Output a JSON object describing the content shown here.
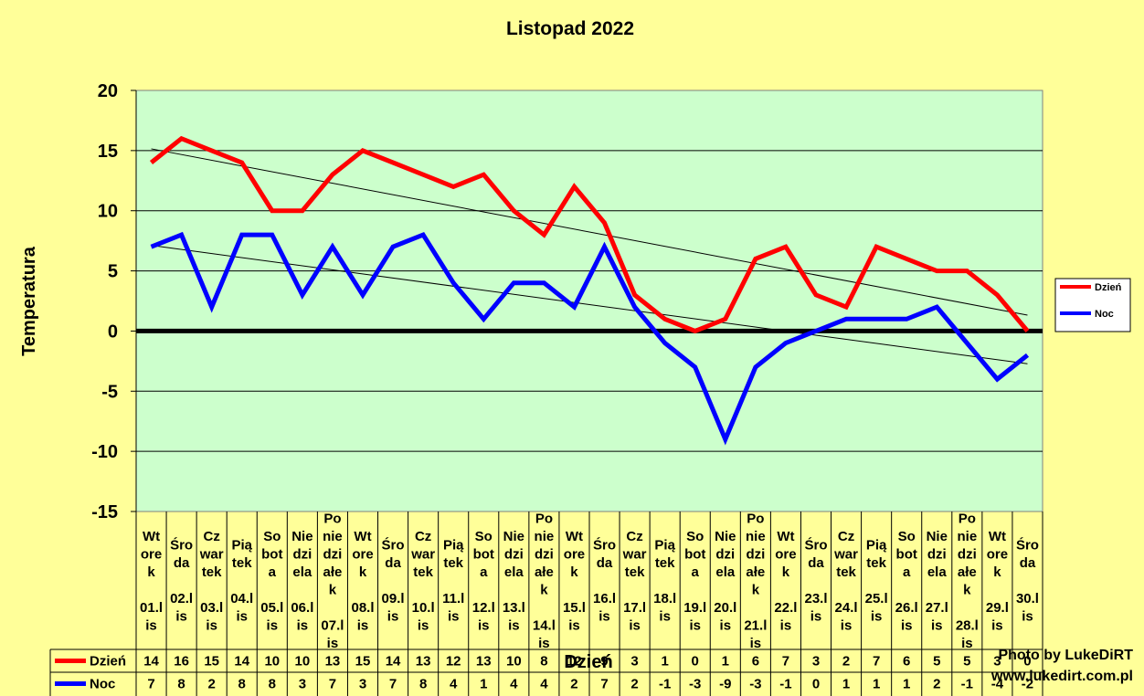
{
  "chart_data": {
    "type": "line",
    "title": "Listopad 2022",
    "ylabel": "Temperatura",
    "xlabel": "Dzień",
    "ylim": [
      -15,
      20
    ],
    "yticks": [
      "20",
      "15",
      "10",
      "5",
      "0",
      "-5",
      "-10",
      "-15"
    ],
    "grid": true,
    "legend_position": "right",
    "day_names": [
      "Wt ore k",
      "Śro da",
      "Cz war tek",
      "Pią tek",
      "So bot a",
      "Nie dzi ela",
      "Po nie dzi ałe k",
      "Wt ore k",
      "Śro da",
      "Cz war tek",
      "Pią tek",
      "So bot a",
      "Nie dzi ela",
      "Po nie dzi ałe k",
      "Wt ore k",
      "Śro da",
      "Cz war tek",
      "Pią tek",
      "So bot a",
      "Nie dzi ela",
      "Po nie dzi ałe k",
      "Wt ore k",
      "Śro da",
      "Cz war tek",
      "Pią tek",
      "So bot a",
      "Nie dzi ela",
      "Po nie dzi ałe k",
      "Wt ore k",
      "Śro da"
    ],
    "dates": [
      "01.l is",
      "02.l is",
      "03.l is",
      "04.l is",
      "05.l is",
      "06.l is",
      "07.l is",
      "08.l is",
      "09.l is",
      "10.l is",
      "11.l is",
      "12.l is",
      "13.l is",
      "14.l is",
      "15.l is",
      "16.l is",
      "17.l is",
      "18.l is",
      "19.l is",
      "20.l is",
      "21.l is",
      "22.l is",
      "23.l is",
      "24.l is",
      "25.l is",
      "26.l is",
      "27.l is",
      "28.l is",
      "29.l is",
      "30.l is"
    ],
    "series": [
      {
        "name": "Dzień",
        "color": "#FF0000",
        "values": [
          14,
          16,
          15,
          14,
          10,
          10,
          13,
          15,
          14,
          13,
          12,
          13,
          10,
          8,
          12,
          9,
          3,
          1,
          0,
          1,
          6,
          7,
          3,
          2,
          7,
          6,
          5,
          5,
          3,
          0
        ]
      },
      {
        "name": "Noc",
        "color": "#0000FF",
        "values": [
          7,
          8,
          2,
          8,
          8,
          3,
          7,
          3,
          7,
          8,
          4,
          1,
          4,
          4,
          2,
          7,
          2,
          -1,
          -3,
          -9,
          -3,
          -1,
          0,
          1,
          1,
          1,
          2,
          -1,
          -4,
          -2
        ]
      }
    ],
    "trendlines": true
  },
  "credit": {
    "line1": "Photo by LukeDiRT",
    "line2": "www.lukedirt.com.pl"
  }
}
